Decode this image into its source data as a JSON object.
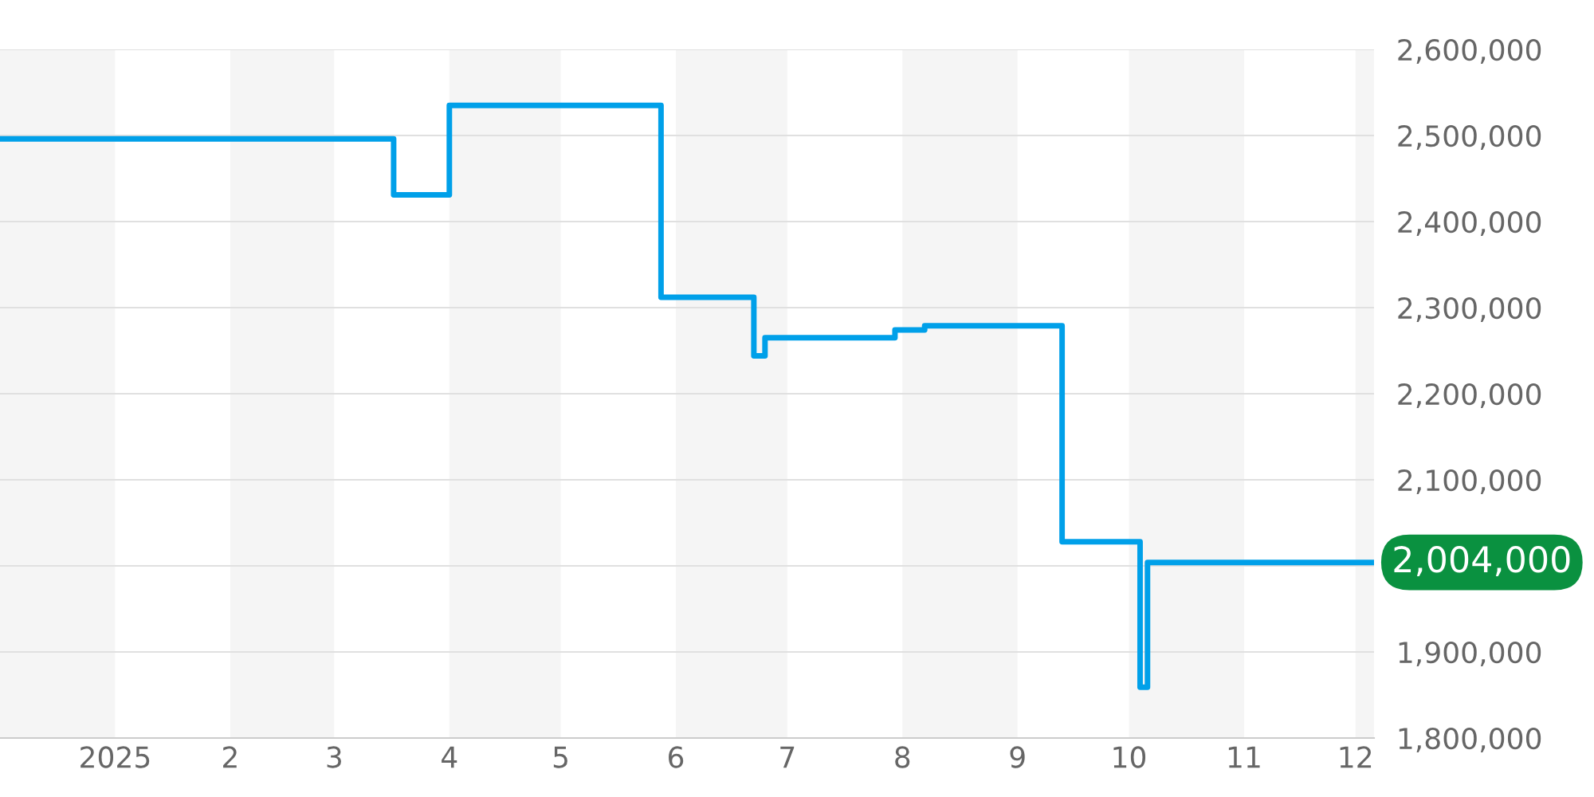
{
  "chart_data": {
    "type": "step",
    "x": [
      "2024-12-01",
      "2025-03-17",
      "2025-04-01",
      "2025-05-28",
      "2025-06-22",
      "2025-06-25",
      "2025-07-30",
      "2025-08-07",
      "2025-09-13",
      "2025-10-04",
      "2025-10-06",
      "2025-12-06"
    ],
    "series": [
      {
        "color": "#00a0e9",
        "values": [
          2496000,
          2431000,
          2535000,
          2312000,
          2244000,
          2265000,
          2274000,
          2279000,
          2028000,
          1859000,
          2004000,
          2004000
        ]
      }
    ],
    "xlim": [
      "2024-12-01",
      "2025-12-06"
    ],
    "xticks": [
      {
        "value": "2025-01-01",
        "label": "2025"
      },
      {
        "value": "2025-02-01",
        "label": "2"
      },
      {
        "value": "2025-03-01",
        "label": "3"
      },
      {
        "value": "2025-04-01",
        "label": "4"
      },
      {
        "value": "2025-05-01",
        "label": "5"
      },
      {
        "value": "2025-06-01",
        "label": "6"
      },
      {
        "value": "2025-07-01",
        "label": "7"
      },
      {
        "value": "2025-08-01",
        "label": "8"
      },
      {
        "value": "2025-09-01",
        "label": "9"
      },
      {
        "value": "2025-10-01",
        "label": "10"
      },
      {
        "value": "2025-11-01",
        "label": "11"
      },
      {
        "value": "2025-12-01",
        "label": "12"
      }
    ],
    "ylim": [
      1800000,
      2600000
    ],
    "yticks": [
      {
        "value": 1800000,
        "label": "1,800,000"
      },
      {
        "value": 1900000,
        "label": "1,900,000"
      },
      {
        "value": 2000000,
        "label": null
      },
      {
        "value": 2100000,
        "label": "2,100,000"
      },
      {
        "value": 2200000,
        "label": "2,200,000"
      },
      {
        "value": 2300000,
        "label": "2,300,000"
      },
      {
        "value": 2400000,
        "label": "2,400,000"
      },
      {
        "value": 2500000,
        "label": "2,500,000"
      },
      {
        "value": 2600000,
        "label": "2,600,000"
      }
    ],
    "grid": "y",
    "bands": [
      {
        "axis": "x",
        "from": "2024-12-01",
        "to": "2025-01-01",
        "color": "#f5f5f5"
      },
      {
        "axis": "x",
        "from": "2025-02-01",
        "to": "2025-03-01",
        "color": "#f5f5f5"
      },
      {
        "axis": "x",
        "from": "2025-04-01",
        "to": "2025-05-01",
        "color": "#f5f5f5"
      },
      {
        "axis": "x",
        "from": "2025-06-01",
        "to": "2025-07-01",
        "color": "#f5f5f5"
      },
      {
        "axis": "x",
        "from": "2025-08-01",
        "to": "2025-09-01",
        "color": "#f5f5f5"
      },
      {
        "axis": "x",
        "from": "2025-10-01",
        "to": "2025-11-01",
        "color": "#f5f5f5"
      },
      {
        "axis": "x",
        "from": "2025-12-01",
        "to": "2025-12-06",
        "color": "#f5f5f5"
      }
    ],
    "annotations": [
      {
        "text": "2,004,000",
        "x": "2025-12-06",
        "y": 2004000
      }
    ]
  }
}
